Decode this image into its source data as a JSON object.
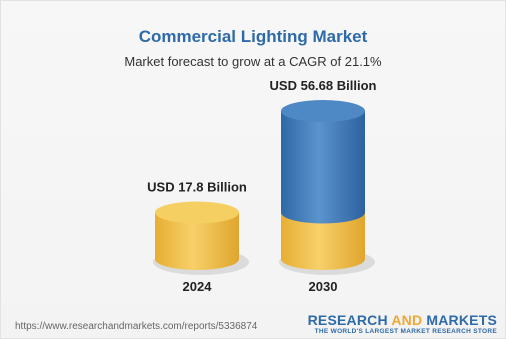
{
  "chart_data": {
    "type": "bar",
    "title": "Commercial Lighting Market",
    "subtitle": "Market forecast to grow at a CAGR of 21.1%",
    "categories": [
      "2024",
      "2030"
    ],
    "values": [
      17.8,
      56.68
    ],
    "value_labels": [
      "USD 17.8 Billion",
      "USD 56.68 Billion"
    ],
    "base_value": 17.8,
    "colors": {
      "base": "#f2c24e",
      "growth": "#3f7cbd"
    },
    "style": "3d-cylinder"
  },
  "footer": {
    "url": "https://www.researchandmarkets.com/reports/5336874",
    "logo_part1": "RESEARCH ",
    "logo_part2": "AND",
    "logo_part3": " MARKETS",
    "logo_tagline": "THE WORLD'S LARGEST MARKET RESEARCH STORE"
  }
}
